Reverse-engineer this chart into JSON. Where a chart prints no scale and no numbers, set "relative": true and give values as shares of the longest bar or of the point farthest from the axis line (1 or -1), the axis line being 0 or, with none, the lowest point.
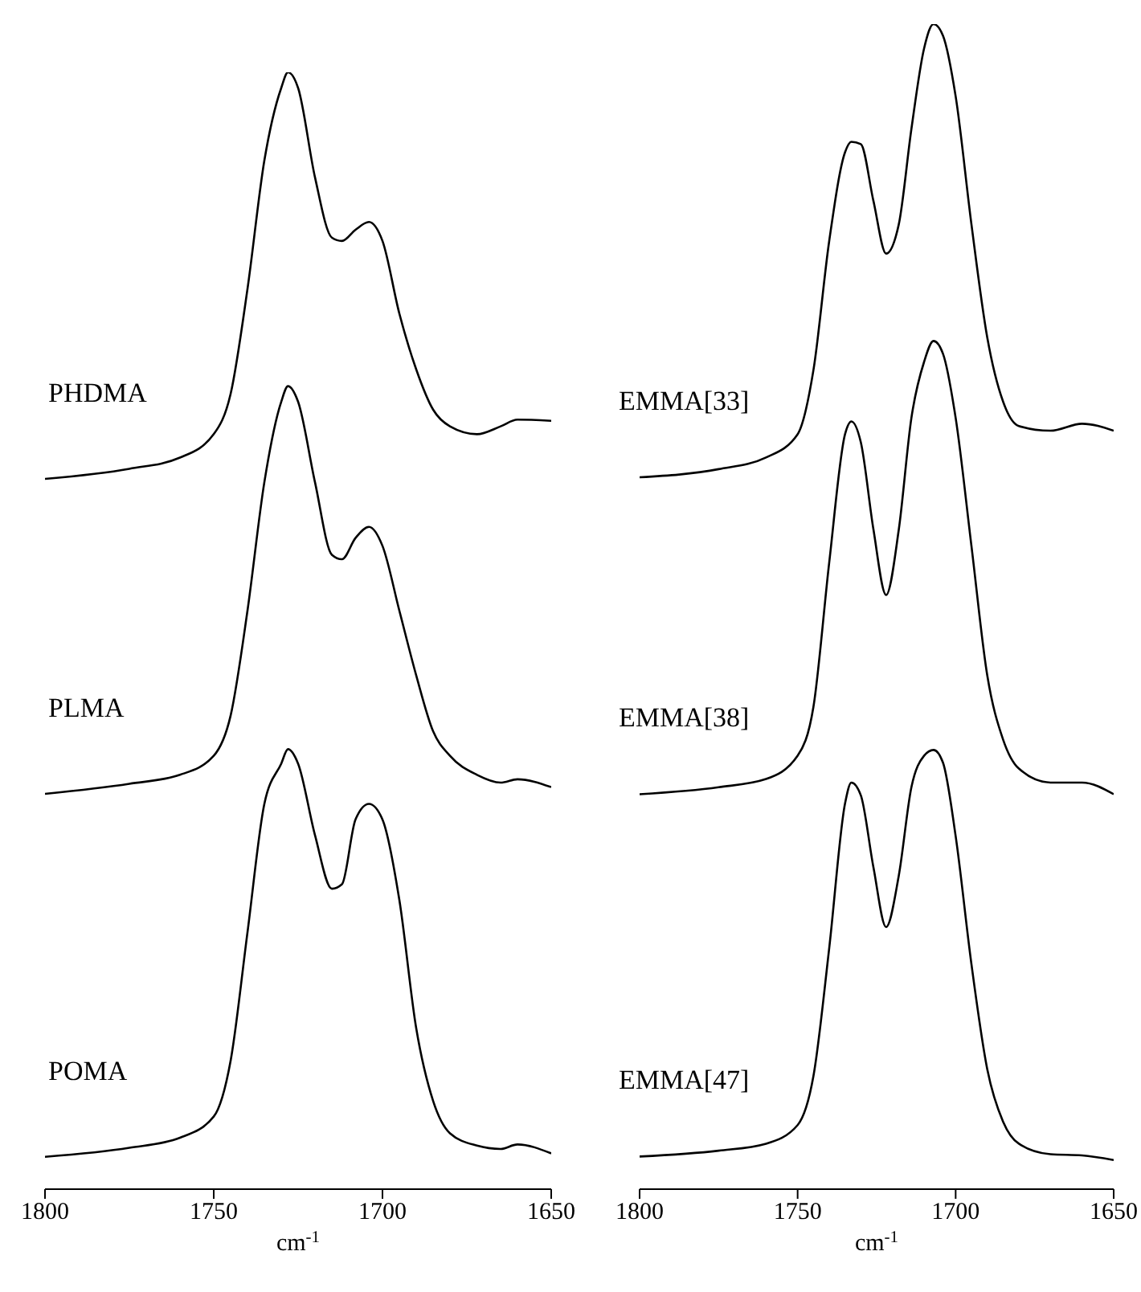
{
  "chart_data": [
    {
      "type": "line",
      "relative": true,
      "xlabel": "cm$^{-1}$",
      "xlim": [
        1800,
        1650
      ],
      "xticks": [
        1800,
        1750,
        1700,
        1650
      ],
      "x": [
        1800,
        1775,
        1760,
        1750,
        1745,
        1740,
        1735,
        1730,
        1728,
        1725,
        1720,
        1715,
        1712,
        1708,
        1704,
        1700,
        1695,
        1690,
        1685,
        1680,
        1672,
        1665,
        1660,
        1650
      ],
      "series": [
        {
          "name": "PHDMA",
          "color": "#000000",
          "values": [
            0.636,
            0.645,
            0.655,
            0.676,
            0.712,
            0.806,
            0.921,
            0.986,
            1,
            0.986,
            0.906,
            0.852,
            0.849,
            0.859,
            0.866,
            0.849,
            0.784,
            0.734,
            0.698,
            0.683,
            0.676,
            0.683,
            0.689,
            0.688
          ]
        },
        {
          "name": "PLMA",
          "color": "#000000",
          "values": [
            0.354,
            0.363,
            0.371,
            0.388,
            0.424,
            0.518,
            0.633,
            0.705,
            0.719,
            0.705,
            0.633,
            0.568,
            0.564,
            0.583,
            0.593,
            0.576,
            0.518,
            0.46,
            0.41,
            0.388,
            0.371,
            0.364,
            0.367,
            0.36
          ]
        },
        {
          "name": "POMA",
          "color": "#000000",
          "values": [
            0.029,
            0.037,
            0.046,
            0.065,
            0.115,
            0.23,
            0.345,
            0.381,
            0.394,
            0.381,
            0.317,
            0.269,
            0.273,
            0.331,
            0.345,
            0.331,
            0.259,
            0.144,
            0.079,
            0.05,
            0.039,
            0.036,
            0.04,
            0.032
          ]
        }
      ]
    },
    {
      "type": "line",
      "relative": true,
      "xlabel": "cm$^{-1}$",
      "xlim": [
        1800,
        1650
      ],
      "xticks": [
        1800,
        1750,
        1700,
        1650
      ],
      "x": [
        1800,
        1775,
        1760,
        1750,
        1745,
        1740,
        1735,
        1733,
        1730,
        1726,
        1722,
        1718,
        1714,
        1710,
        1707,
        1704,
        1700,
        1695,
        1690,
        1685,
        1680,
        1670,
        1660,
        1650
      ],
      "series": [
        {
          "name": "EMMA[33]",
          "color": "#000000",
          "values": [
            0.611,
            0.618,
            0.628,
            0.648,
            0.703,
            0.814,
            0.89,
            0.899,
            0.897,
            0.848,
            0.803,
            0.828,
            0.91,
            0.979,
            1,
            0.99,
            0.938,
            0.828,
            0.731,
            0.676,
            0.655,
            0.651,
            0.657,
            0.651
          ]
        },
        {
          "name": "EMMA[38]",
          "color": "#000000",
          "values": [
            0.339,
            0.345,
            0.352,
            0.372,
            0.414,
            0.538,
            0.648,
            0.659,
            0.641,
            0.566,
            0.51,
            0.566,
            0.662,
            0.71,
            0.728,
            0.717,
            0.662,
            0.552,
            0.441,
            0.386,
            0.361,
            0.349,
            0.349,
            0.339
          ]
        },
        {
          "name": "EMMA[47]",
          "color": "#000000",
          "values": [
            0.028,
            0.033,
            0.039,
            0.055,
            0.097,
            0.207,
            0.331,
            0.349,
            0.338,
            0.276,
            0.225,
            0.269,
            0.345,
            0.372,
            0.377,
            0.366,
            0.303,
            0.193,
            0.103,
            0.058,
            0.039,
            0.03,
            0.029,
            0.025
          ]
        }
      ]
    }
  ]
}
